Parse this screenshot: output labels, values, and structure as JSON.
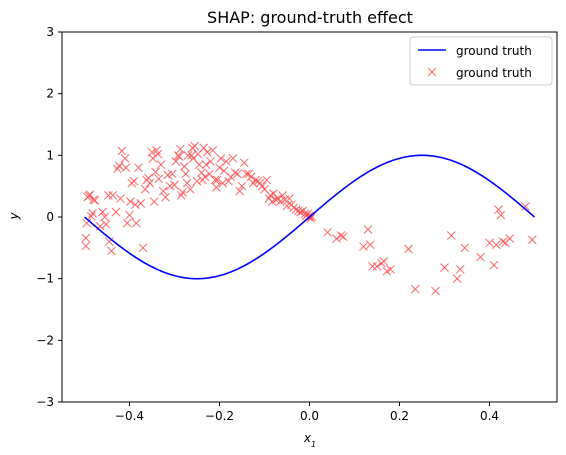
{
  "chart_data": {
    "type": "scatter",
    "title": "SHAP: ground-truth effect",
    "xlabel_base": "x",
    "xlabel_sub": "1",
    "ylabel": "y",
    "xlim": [
      -0.55,
      0.55
    ],
    "ylim": [
      -3,
      3
    ],
    "xticks": [
      -0.4,
      -0.2,
      0.0,
      0.2,
      0.4
    ],
    "xtick_labels": [
      "−0.4",
      "−0.2",
      "0.0",
      "0.2",
      "0.4"
    ],
    "yticks": [
      -3,
      -2,
      -1,
      0,
      1,
      2,
      3
    ],
    "ytick_labels": [
      "−3",
      "−2",
      "−1",
      "0",
      "1",
      "2",
      "3"
    ],
    "grid": false,
    "legend_position": "top-right",
    "series": [
      {
        "name": "ground truth",
        "kind": "line",
        "color": "#0000ff",
        "function": "sin(2*pi*x)",
        "x_range": [
          -0.5,
          0.5
        ]
      },
      {
        "name": "ground truth",
        "kind": "marker-x",
        "color": "#ff5050",
        "points": [
          [
            -0.497,
            -0.47
          ],
          [
            -0.497,
            -0.34
          ],
          [
            -0.495,
            -0.1
          ],
          [
            -0.493,
            0.32
          ],
          [
            -0.49,
            0.34
          ],
          [
            -0.488,
            0.36
          ],
          [
            -0.485,
            0.01
          ],
          [
            -0.482,
            0.06
          ],
          [
            -0.48,
            0.28
          ],
          [
            -0.477,
            0.27
          ],
          [
            -0.465,
            -0.15
          ],
          [
            -0.46,
            0.08
          ],
          [
            -0.455,
            0.0
          ],
          [
            -0.452,
            -0.12
          ],
          [
            -0.447,
            0.35
          ],
          [
            -0.445,
            -0.4
          ],
          [
            -0.44,
            -0.55
          ],
          [
            -0.437,
            0.35
          ],
          [
            -0.43,
            0.08
          ],
          [
            -0.427,
            0.78
          ],
          [
            -0.423,
            0.83
          ],
          [
            -0.42,
            0.3
          ],
          [
            -0.417,
            1.07
          ],
          [
            -0.41,
            0.95
          ],
          [
            -0.408,
            0.8
          ],
          [
            -0.405,
            -0.1
          ],
          [
            -0.4,
            0.03
          ],
          [
            -0.398,
            0.25
          ],
          [
            -0.395,
            0.55
          ],
          [
            -0.39,
            0.58
          ],
          [
            -0.387,
            0.2
          ],
          [
            -0.385,
            -0.1
          ],
          [
            -0.38,
            0.8
          ],
          [
            -0.375,
            0.22
          ],
          [
            -0.37,
            -0.5
          ],
          [
            -0.365,
            0.45
          ],
          [
            -0.362,
            0.6
          ],
          [
            -0.358,
            0.63
          ],
          [
            -0.355,
            0.55
          ],
          [
            -0.35,
            1.05
          ],
          [
            -0.348,
            0.95
          ],
          [
            -0.345,
            0.25
          ],
          [
            -0.342,
            0.73
          ],
          [
            -0.34,
            1.08
          ],
          [
            -0.337,
            1.02
          ],
          [
            -0.335,
            0.62
          ],
          [
            -0.33,
            0.85
          ],
          [
            -0.325,
            0.42
          ],
          [
            -0.32,
            0.32
          ],
          [
            -0.315,
            0.68
          ],
          [
            -0.31,
            0.5
          ],
          [
            -0.305,
            0.7
          ],
          [
            -0.3,
            0.52
          ],
          [
            -0.297,
            0.9
          ],
          [
            -0.292,
            1.0
          ],
          [
            -0.29,
            0.98
          ],
          [
            -0.287,
            1.1
          ],
          [
            -0.285,
            0.35
          ],
          [
            -0.282,
            0.4
          ],
          [
            -0.278,
            0.82
          ],
          [
            -0.275,
            0.7
          ],
          [
            -0.272,
            0.55
          ],
          [
            -0.27,
            1.0
          ],
          [
            -0.265,
            0.45
          ],
          [
            -0.262,
            1.0
          ],
          [
            -0.26,
            1.12
          ],
          [
            -0.258,
            0.95
          ],
          [
            -0.255,
            1.15
          ],
          [
            -0.25,
            0.58
          ],
          [
            -0.248,
            1.02
          ],
          [
            -0.245,
            0.85
          ],
          [
            -0.24,
            0.72
          ],
          [
            -0.238,
            0.6
          ],
          [
            -0.235,
            1.12
          ],
          [
            -0.232,
            0.65
          ],
          [
            -0.23,
            0.85
          ],
          [
            -0.227,
            1.05
          ],
          [
            -0.222,
            0.7
          ],
          [
            -0.22,
            0.9
          ],
          [
            -0.215,
            1.08
          ],
          [
            -0.21,
            0.6
          ],
          [
            -0.207,
            0.48
          ],
          [
            -0.205,
            0.6
          ],
          [
            -0.2,
            0.8
          ],
          [
            -0.197,
            0.95
          ],
          [
            -0.193,
            0.55
          ],
          [
            -0.19,
            0.75
          ],
          [
            -0.185,
            0.9
          ],
          [
            -0.18,
            0.58
          ],
          [
            -0.175,
            0.65
          ],
          [
            -0.17,
            0.95
          ],
          [
            -0.165,
            0.72
          ],
          [
            -0.16,
            0.7
          ],
          [
            -0.155,
            0.42
          ],
          [
            -0.15,
            0.5
          ],
          [
            -0.145,
            0.88
          ],
          [
            -0.14,
            0.7
          ],
          [
            -0.135,
            0.7
          ],
          [
            -0.13,
            0.65
          ],
          [
            -0.125,
            0.55
          ],
          [
            -0.12,
            0.6
          ],
          [
            -0.115,
            0.58
          ],
          [
            -0.11,
            0.55
          ],
          [
            -0.105,
            0.5
          ],
          [
            -0.1,
            0.45
          ],
          [
            -0.095,
            0.6
          ],
          [
            -0.09,
            0.3
          ],
          [
            -0.087,
            0.35
          ],
          [
            -0.083,
            0.25
          ],
          [
            -0.08,
            0.38
          ],
          [
            -0.075,
            0.28
          ],
          [
            -0.07,
            0.3
          ],
          [
            -0.065,
            0.25
          ],
          [
            -0.06,
            0.35
          ],
          [
            -0.055,
            0.28
          ],
          [
            -0.05,
            0.18
          ],
          [
            -0.045,
            0.3
          ],
          [
            -0.04,
            0.2
          ],
          [
            -0.035,
            0.15
          ],
          [
            -0.03,
            0.12
          ],
          [
            -0.025,
            0.1
          ],
          [
            -0.02,
            0.08
          ],
          [
            -0.015,
            0.1
          ],
          [
            -0.01,
            0.05
          ],
          [
            -0.007,
            0.02
          ],
          [
            -0.004,
            0.05
          ],
          [
            -0.002,
            0.0
          ],
          [
            0.0,
            0.02
          ],
          [
            0.003,
            -0.02
          ],
          [
            0.005,
            0.01
          ],
          [
            0.04,
            -0.25
          ],
          [
            0.06,
            -0.35
          ],
          [
            0.07,
            -0.3
          ],
          [
            0.075,
            -0.32
          ],
          [
            0.12,
            -0.48
          ],
          [
            0.13,
            -0.2
          ],
          [
            0.135,
            -0.45
          ],
          [
            0.14,
            -0.8
          ],
          [
            0.15,
            -0.8
          ],
          [
            0.16,
            -0.75
          ],
          [
            0.165,
            -0.72
          ],
          [
            0.172,
            -0.88
          ],
          [
            0.18,
            -0.85
          ],
          [
            0.22,
            -0.52
          ],
          [
            0.235,
            -1.17
          ],
          [
            0.28,
            -1.2
          ],
          [
            0.3,
            -0.82
          ],
          [
            0.315,
            -0.3
          ],
          [
            0.328,
            -1.0
          ],
          [
            0.335,
            -0.85
          ],
          [
            0.345,
            -0.5
          ],
          [
            0.38,
            -0.65
          ],
          [
            0.4,
            -0.42
          ],
          [
            0.41,
            -0.78
          ],
          [
            0.415,
            -0.45
          ],
          [
            0.42,
            0.12
          ],
          [
            0.425,
            0.03
          ],
          [
            0.43,
            -0.4
          ],
          [
            0.435,
            -0.42
          ],
          [
            0.445,
            -0.35
          ],
          [
            0.48,
            0.17
          ],
          [
            0.495,
            -0.37
          ]
        ]
      }
    ]
  }
}
